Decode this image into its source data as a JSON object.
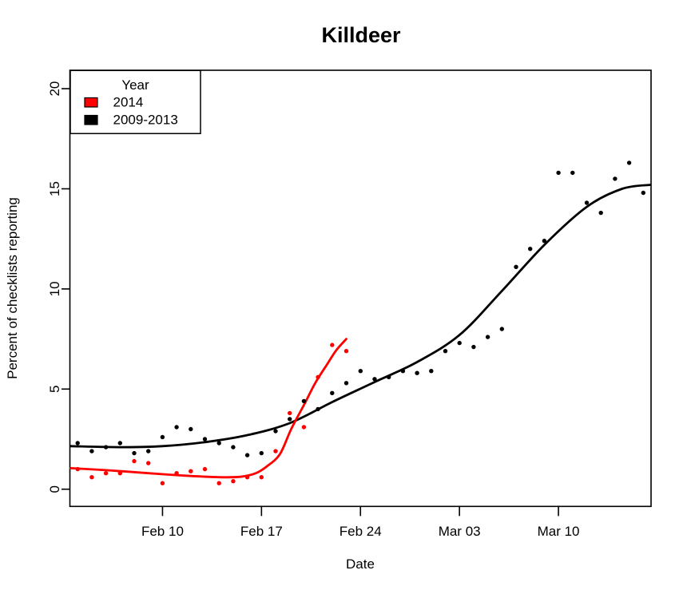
{
  "title": "Killdeer",
  "axes": {
    "x": {
      "label": "Date",
      "ticks": [
        {
          "label": "Feb 10",
          "day": 6
        },
        {
          "label": "Feb 17",
          "day": 13
        },
        {
          "label": "Feb 24",
          "day": 20
        },
        {
          "label": "Mar 03",
          "day": 27
        },
        {
          "label": "Mar 10",
          "day": 34
        }
      ]
    },
    "y": {
      "label": "Percent of checklists reporting",
      "ticks": [
        {
          "label": "0",
          "value": 0
        },
        {
          "label": "5",
          "value": 5
        },
        {
          "label": "10",
          "value": 10
        },
        {
          "label": "15",
          "value": 15
        },
        {
          "label": "20",
          "value": 20
        }
      ]
    }
  },
  "legend": {
    "title": "Year",
    "position": "topleft",
    "entries": [
      {
        "label": "2014",
        "color": "#ff0000"
      },
      {
        "label": "2009-2013",
        "color": "#000000"
      }
    ]
  },
  "chart_data": {
    "type": "scatter",
    "title": "Killdeer",
    "xlabel": "Date",
    "ylabel": "Percent of checklists reporting",
    "x_unit": "days since Feb 04",
    "x_range_days": [
      -0.55,
      40.55
    ],
    "y_range": [
      -0.86,
      20.92
    ],
    "grid": false,
    "legend_position": "topleft",
    "series": [
      {
        "name": "2009-2013",
        "color": "#000000",
        "start_date": "Feb 04",
        "dates": [
          "Feb 04",
          "Feb 05",
          "Feb 06",
          "Feb 07",
          "Feb 08",
          "Feb 09",
          "Feb 10",
          "Feb 11",
          "Feb 12",
          "Feb 13",
          "Feb 14",
          "Feb 15",
          "Feb 16",
          "Feb 17",
          "Feb 18",
          "Feb 19",
          "Feb 20",
          "Feb 21",
          "Feb 22",
          "Feb 23",
          "Feb 24",
          "Feb 25",
          "Feb 26",
          "Feb 27",
          "Feb 28",
          "Mar 01",
          "Mar 02",
          "Mar 03",
          "Mar 04",
          "Mar 05",
          "Mar 06",
          "Mar 07",
          "Mar 08",
          "Mar 09",
          "Mar 10",
          "Mar 11",
          "Mar 12",
          "Mar 13",
          "Mar 14",
          "Mar 15",
          "Mar 16"
        ],
        "values": [
          2.3,
          1.9,
          2.1,
          2.3,
          1.8,
          1.9,
          2.6,
          3.1,
          3.0,
          2.5,
          2.3,
          2.1,
          1.7,
          1.8,
          2.9,
          3.5,
          4.4,
          4.0,
          4.8,
          5.3,
          5.9,
          5.5,
          5.6,
          5.9,
          5.8,
          5.9,
          6.9,
          7.3,
          7.1,
          7.6,
          8.0,
          11.1,
          12.0,
          12.4,
          15.8,
          15.8,
          14.3,
          13.8,
          15.5,
          16.3,
          14.8
        ],
        "trend": [
          [
            -0.5,
            2.15
          ],
          [
            3,
            2.1
          ],
          [
            6,
            2.15
          ],
          [
            9,
            2.35
          ],
          [
            12,
            2.7
          ],
          [
            15,
            3.3
          ],
          [
            18,
            4.35
          ],
          [
            21,
            5.35
          ],
          [
            24,
            6.35
          ],
          [
            27,
            7.7
          ],
          [
            30,
            9.9
          ],
          [
            33,
            12.2
          ],
          [
            36,
            14.1
          ],
          [
            38.5,
            15.0
          ],
          [
            40.5,
            15.2
          ]
        ]
      },
      {
        "name": "2014",
        "color": "#ff0000",
        "start_date": "Feb 04",
        "dates": [
          "Feb 04",
          "Feb 05",
          "Feb 06",
          "Feb 07",
          "Feb 08",
          "Feb 09",
          "Feb 10",
          "Feb 11",
          "Feb 12",
          "Feb 13",
          "Feb 14",
          "Feb 15",
          "Feb 16",
          "Feb 17",
          "Feb 18",
          "Feb 19",
          "Feb 20",
          "Feb 21",
          "Feb 22",
          "Feb 23"
        ],
        "values": [
          1.0,
          0.6,
          0.8,
          0.8,
          1.4,
          1.3,
          0.3,
          0.8,
          0.9,
          1.0,
          0.3,
          0.4,
          0.6,
          0.6,
          1.9,
          3.8,
          3.1,
          5.6,
          7.2,
          6.9
        ],
        "trend": [
          [
            -0.5,
            1.05
          ],
          [
            2,
            0.95
          ],
          [
            5,
            0.8
          ],
          [
            7.5,
            0.68
          ],
          [
            10,
            0.6
          ],
          [
            11.5,
            0.62
          ],
          [
            12.6,
            0.8
          ],
          [
            13.4,
            1.15
          ],
          [
            14.3,
            1.75
          ],
          [
            15.1,
            3.0
          ],
          [
            16,
            4.2
          ],
          [
            16.8,
            5.3
          ],
          [
            17.7,
            6.3
          ],
          [
            18.3,
            6.95
          ],
          [
            19,
            7.5
          ]
        ]
      }
    ]
  }
}
